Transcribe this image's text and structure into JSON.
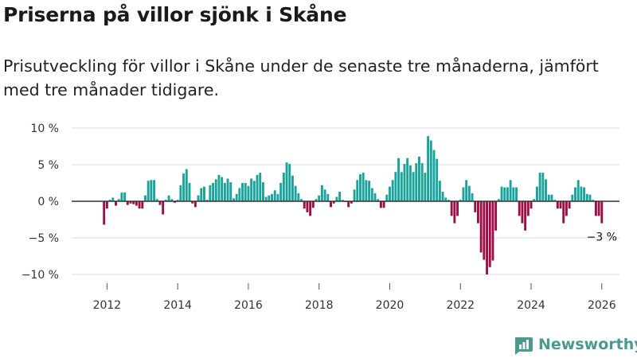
{
  "header": {
    "title": "Priserna på villor sjönk i Skåne",
    "subtitle": "Prisutveckling för villor i Skåne under de senaste tre månaderna, jämfört med tre månader tidigare."
  },
  "brand": {
    "name": "Newsworthy",
    "icon": "newsworthy-logo-icon"
  },
  "colors": {
    "positive": "#1aa39a",
    "negative": "#9c0e47",
    "grid": "#dddddd",
    "zero": "#333333",
    "brand": "#4a9a8e"
  },
  "chart_data": {
    "type": "bar",
    "title": "Priserna på villor sjönk i Skåne",
    "xlabel": "",
    "ylabel": "",
    "ylim": [
      -10.5,
      10
    ],
    "x_range": [
      2011.0,
      2026.5
    ],
    "start_year": 2011.917,
    "step": 0.08333,
    "x_ticks": [
      "2012",
      "2014",
      "2016",
      "2018",
      "2020",
      "2022",
      "2024",
      "2026"
    ],
    "y_ticks": [
      "10 %",
      "5 %",
      "0 %",
      "−5 %",
      "−10 %"
    ],
    "y_tick_values": [
      10,
      5,
      0,
      -5,
      -10
    ],
    "annotation": {
      "text": "−3 %",
      "value": -3
    },
    "values": [
      -3.2,
      -1.0,
      0.2,
      0.5,
      -0.6,
      0.3,
      1.2,
      1.2,
      -0.5,
      -0.3,
      -0.4,
      -0.6,
      -1.0,
      -1.0,
      0.8,
      2.8,
      2.9,
      2.9,
      0.3,
      -0.5,
      -1.8,
      0.2,
      0.8,
      0.3,
      -0.2,
      0.2,
      2.2,
      3.8,
      4.4,
      2.5,
      -0.3,
      -0.8,
      0.8,
      1.8,
      2.0,
      0.2,
      2.2,
      2.5,
      3.0,
      3.6,
      3.3,
      2.5,
      3.1,
      2.6,
      0.4,
      1.0,
      1.8,
      2.5,
      2.5,
      2.1,
      3.1,
      2.8,
      3.6,
      3.9,
      2.6,
      0.6,
      0.8,
      1.0,
      1.5,
      1.0,
      2.5,
      3.9,
      5.3,
      5.1,
      3.5,
      2.1,
      1.1,
      0.3,
      -1.0,
      -1.5,
      -2.0,
      -0.9,
      0.3,
      0.8,
      2.2,
      1.6,
      1.0,
      -0.8,
      -0.3,
      0.6,
      1.3,
      0.2,
      -0.1,
      -0.8,
      -0.3,
      1.6,
      2.9,
      3.7,
      3.9,
      2.9,
      2.8,
      1.8,
      1.1,
      0.3,
      -0.9,
      -0.9,
      0.9,
      2.0,
      2.9,
      4.0,
      5.9,
      4.0,
      5.1,
      5.9,
      4.9,
      4.0,
      5.2,
      6.1,
      5.2,
      3.9,
      8.9,
      8.3,
      7.0,
      5.8,
      2.8,
      1.3,
      0.5,
      0.2,
      -2.0,
      -3.0,
      -2.0,
      0.2,
      1.9,
      2.9,
      2.1,
      1.1,
      -1.5,
      -3.0,
      -7.0,
      -8.0,
      -10.0,
      -9.0,
      -8.1,
      -4.0,
      0.3,
      2.0,
      1.9,
      1.9,
      2.9,
      1.9,
      1.9,
      -2.0,
      -3.0,
      -4.0,
      -2.0,
      -1.0,
      0.3,
      2.0,
      3.9,
      3.9,
      3.0,
      0.9,
      0.9,
      0.2,
      -1.0,
      -1.0,
      -3.0,
      -2.0,
      -1.0,
      0.9,
      1.9,
      2.9,
      2.0,
      1.9,
      1.0,
      0.9,
      0.2,
      -2.0,
      -2.0,
      -3.0
    ]
  }
}
